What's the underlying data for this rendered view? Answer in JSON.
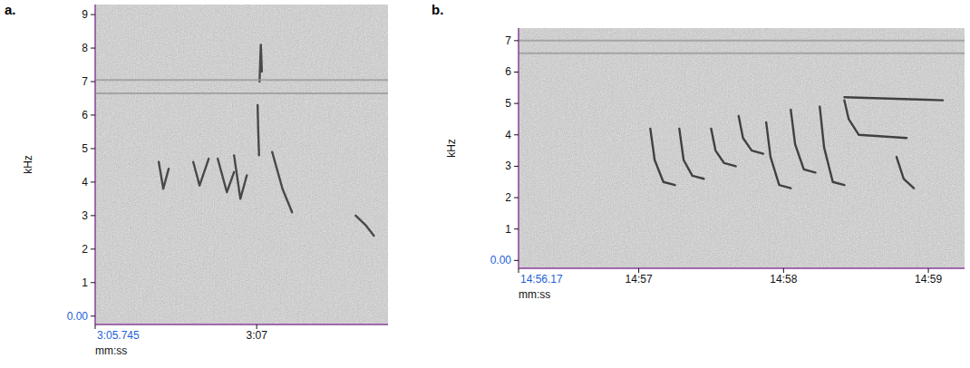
{
  "chart_data": [
    {
      "type": "line",
      "title": "a.",
      "xlabel": "mm:ss",
      "ylabel": "kHz",
      "xlim": [
        185.745,
        188.02
      ],
      "ylim": [
        -0.25,
        9.3
      ],
      "xticks": [
        {
          "value": 185.745,
          "label": "3:05.745"
        },
        {
          "value": 187,
          "label": "3:07"
        }
      ],
      "yticks": [
        {
          "value": 0,
          "label": "0.00"
        },
        1,
        2,
        3,
        4,
        5,
        6,
        7,
        8,
        9
      ],
      "grid": false,
      "series": [
        {
          "color": "#3a3a3a",
          "x": [
            186.239,
            186.274,
            186.316,
            null,
            186.507,
            186.556,
            186.627,
            null,
            186.697,
            186.768,
            186.824,
            null,
            186.824,
            186.873,
            186.923,
            null,
            187.007,
            187.012,
            187.018,
            null,
            187.022,
            187.032,
            187.04,
            null,
            187.12,
            187.2,
            187.275,
            null,
            187.769,
            187.85,
            187.91
          ],
          "values": [
            4.6,
            3.8,
            4.4,
            null,
            4.6,
            3.9,
            4.7,
            null,
            4.7,
            3.7,
            4.3,
            null,
            4.8,
            3.5,
            4.2,
            null,
            6.3,
            5.5,
            4.8,
            null,
            7.0,
            8.1,
            7.3,
            null,
            4.9,
            3.8,
            3.1,
            null,
            3.0,
            2.7,
            2.4
          ]
        },
        {
          "color": "#9a9a9a",
          "x": [
            185.745,
            188.02,
            null,
            185.745,
            188.02
          ],
          "values": [
            7.05,
            7.05,
            null,
            6.65,
            6.65
          ]
        }
      ]
    },
    {
      "type": "line",
      "title": "b.",
      "xlabel": "mm:ss",
      "ylabel": "kHz",
      "xlim": [
        896.17,
        899.25
      ],
      "ylim": [
        -0.25,
        7.4
      ],
      "xticks": [
        {
          "value": 896.17,
          "label": "14:56.17"
        },
        {
          "value": 897,
          "label": "14:57"
        },
        {
          "value": 898,
          "label": "14:58"
        },
        {
          "value": 899,
          "label": "14:59"
        }
      ],
      "yticks": [
        {
          "value": 0,
          "label": "0.00"
        },
        1,
        2,
        3,
        4,
        5,
        6,
        7
      ],
      "grid": false,
      "series": [
        {
          "color": "#333333",
          "x": [
            897.08,
            897.11,
            897.17,
            897.25,
            null,
            897.28,
            897.31,
            897.37,
            897.45,
            null,
            897.5,
            897.53,
            897.59,
            897.67,
            null,
            897.69,
            897.72,
            897.78,
            897.86,
            null,
            897.88,
            897.91,
            897.97,
            898.05,
            null,
            898.05,
            898.08,
            898.14,
            898.22,
            null,
            898.25,
            898.28,
            898.34,
            898.42,
            null,
            898.42,
            898.45,
            898.52,
            898.85,
            null,
            898.78,
            898.83,
            898.9,
            null,
            898.42,
            899.1
          ],
          "values": [
            4.2,
            3.2,
            2.5,
            2.4,
            null,
            4.2,
            3.2,
            2.7,
            2.6,
            null,
            4.2,
            3.5,
            3.1,
            3.0,
            null,
            4.6,
            3.9,
            3.5,
            3.4,
            null,
            4.4,
            3.3,
            2.4,
            2.3,
            null,
            4.8,
            3.7,
            2.9,
            2.8,
            null,
            4.9,
            3.6,
            2.5,
            2.4,
            null,
            5.1,
            4.5,
            4.0,
            3.9,
            null,
            3.3,
            2.6,
            2.3,
            null,
            5.2,
            5.1
          ]
        },
        {
          "color": "#9a9a9a",
          "x": [
            896.17,
            899.25,
            null,
            896.17,
            899.25
          ],
          "values": [
            7.0,
            7.0,
            null,
            6.6,
            6.6
          ]
        }
      ]
    }
  ]
}
